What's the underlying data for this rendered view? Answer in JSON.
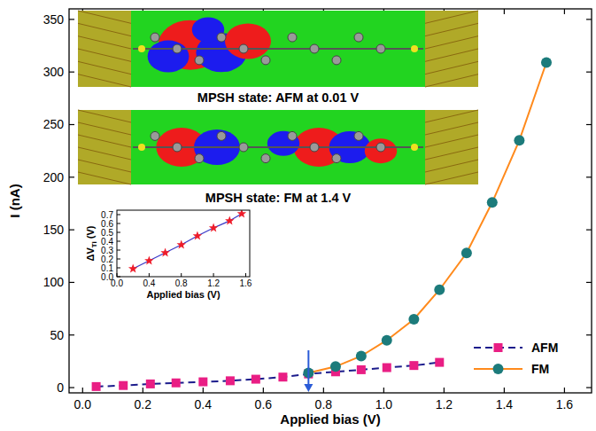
{
  "chart_data": {
    "type": "line",
    "x_label": "Applied bias (V)",
    "y_label": "I (nA)",
    "xlim": [
      -0.045,
      1.69
    ],
    "xticks": [
      {
        "value": 0,
        "label": "0.0"
      },
      0.2,
      0.4,
      0.6,
      0.8,
      {
        "value": 1,
        "label": "1.0"
      },
      1.2,
      1.4,
      1.6
    ],
    "ylim": [
      -5,
      360
    ],
    "yticks": [
      0,
      50,
      100,
      150,
      200,
      250,
      300,
      350
    ],
    "grid": false,
    "legend": "lower right",
    "series": [
      {
        "name": "AFM",
        "color": "#1c1c8c",
        "line_style": "dashed",
        "marker": "square",
        "x": [
          0.045,
          0.135,
          0.225,
          0.31,
          0.4,
          0.49,
          0.575,
          0.665,
          0.75,
          0.84,
          0.925,
          1.01,
          1.1,
          1.185
        ],
        "values": [
          1,
          2,
          3.5,
          4.5,
          5.5,
          6.5,
          8,
          10,
          13,
          15,
          17,
          19,
          21,
          24
        ]
      },
      {
        "name": "FM",
        "color": "#ff8a1c",
        "line_style": "solid",
        "marker": "circle",
        "x": [
          0.75,
          0.84,
          0.925,
          1.01,
          1.1,
          1.185,
          1.275,
          1.36,
          1.45,
          1.54
        ],
        "values": [
          14,
          20,
          30,
          45,
          65,
          93,
          128,
          176,
          235,
          309
        ]
      }
    ],
    "annotations": [
      "MPSH state: AFM at 0.01 V",
      "MPSH state: FM at 1.4 V"
    ],
    "arrow_x": 0.75,
    "inset": {
      "type": "line",
      "x_label": "Applied bias (V)",
      "y_label": "ΔV",
      "y_label_sub": "Ti",
      "y_label_unit": "(V)",
      "xlim": [
        0,
        1.65
      ],
      "xticks": [
        {
          "value": 0,
          "label": "0.0"
        },
        0.4,
        0.8,
        1.2,
        1.6
      ],
      "ylim": [
        0,
        0.75
      ],
      "yticks": [
        {
          "value": 0,
          "label": "0.0"
        },
        0.1,
        0.2,
        0.3,
        0.4,
        0.5,
        0.6,
        0.7
      ],
      "series": [
        {
          "color": "#3a3ac8",
          "line_style": "solid",
          "marker": "star",
          "x": [
            0.2,
            0.4,
            0.6,
            0.8,
            1.0,
            1.2,
            1.4,
            1.55
          ],
          "values": [
            0.09,
            0.18,
            0.27,
            0.36,
            0.46,
            0.55,
            0.63,
            0.71
          ]
        }
      ]
    }
  }
}
